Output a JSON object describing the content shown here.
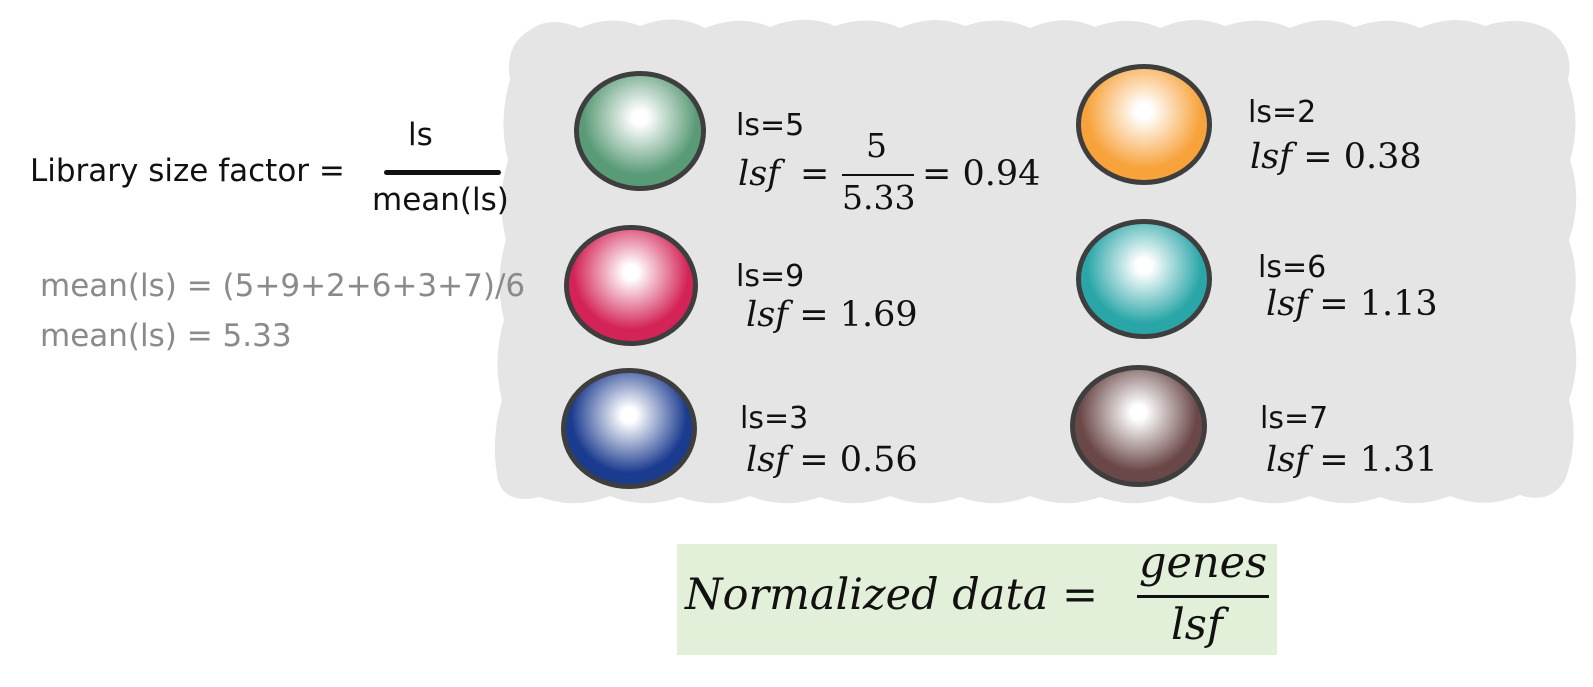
{
  "formula": {
    "label": "Library size factor =",
    "numerator": "ls",
    "denominator": "mean(ls)"
  },
  "mean_lines": [
    "mean(ls) = (5+9+2+6+3+7)/6",
    "mean(ls) = 5.33"
  ],
  "cells": [
    {
      "ls_label": "ls=5",
      "lsf_var": "lsf",
      "lsf_eq": "=",
      "frac_num": "5",
      "frac_den": "5.33",
      "lsf_result": "= 0.94",
      "color": "#5a9b77"
    },
    {
      "ls_label": "ls=2",
      "lsf_var": "lsf",
      "lsf_value": "= 0.38",
      "color": "#f7a23a"
    },
    {
      "ls_label": "ls=9",
      "lsf_var": "lsf",
      "lsf_value": "= 1.69",
      "color": "#d42356"
    },
    {
      "ls_label": "ls=6",
      "lsf_var": "lsf",
      "lsf_value": "= 1.13",
      "color": "#2aa6a8"
    },
    {
      "ls_label": "ls=3",
      "lsf_var": "lsf",
      "lsf_value": "= 0.56",
      "color": "#1b3b8f"
    },
    {
      "ls_label": "ls=7",
      "lsf_var": "lsf",
      "lsf_value": "= 1.31",
      "color": "#6b4848"
    }
  ],
  "normalized": {
    "lhs": "Normalized data =",
    "numerator": "genes",
    "denominator": "lsf"
  },
  "colors": {
    "blob": "#e5e5e5",
    "norm_box": "#e2efd9",
    "mean_text": "#8a8a8a"
  }
}
